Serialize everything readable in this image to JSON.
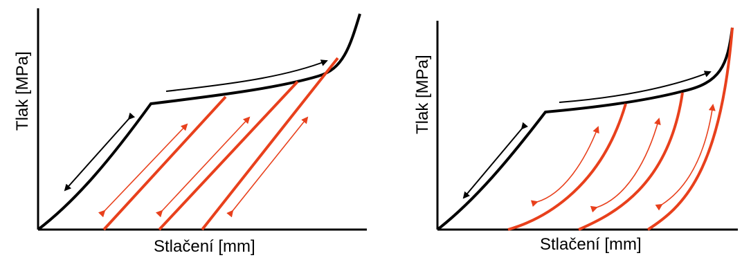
{
  "panels": [
    {
      "id": "left",
      "y_label": "Tlak [MPa]",
      "x_label": "Stlačení [mm]"
    },
    {
      "id": "right",
      "y_label": "Tlak [MPa]",
      "x_label": "Stlačení [mm]"
    }
  ],
  "colors": {
    "axis": "#000000",
    "loading_curve": "#000000",
    "unloading_lines": "#e8401c",
    "arrows": "#e8401c"
  }
}
